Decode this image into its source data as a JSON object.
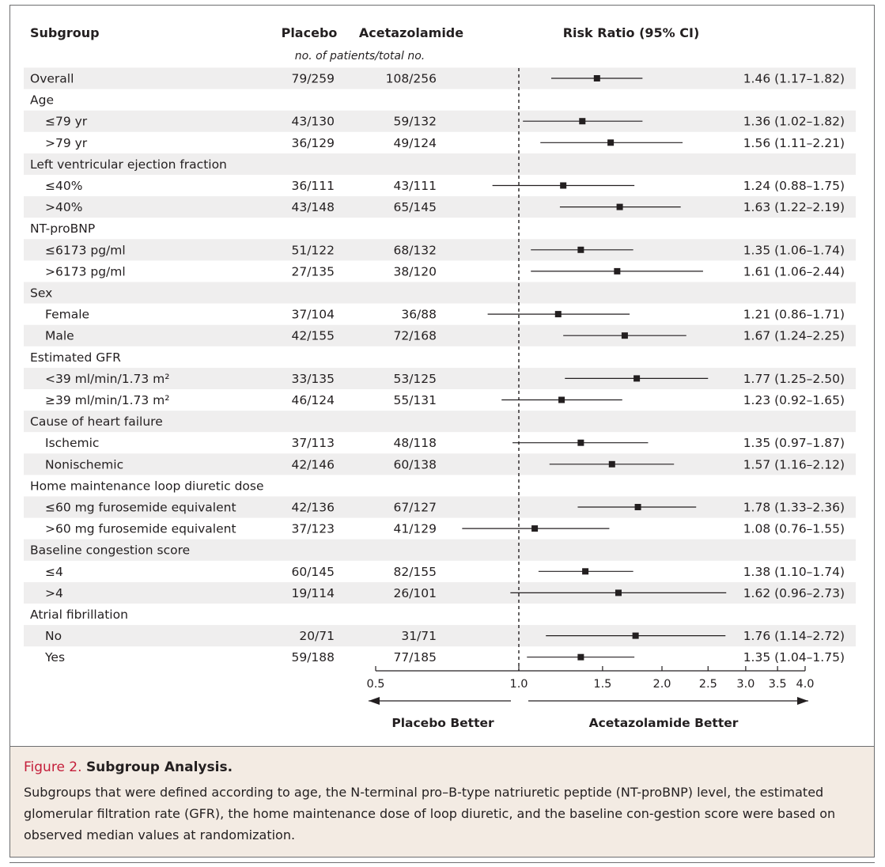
{
  "headers": {
    "subgroup": "Subgroup",
    "placebo": "Placebo",
    "acetazolamide": "Acetazolamide",
    "risk_ratio": "Risk Ratio (95% CI)",
    "patients_note": "no. of patients/total no."
  },
  "directions": {
    "left": "Placebo Better",
    "right": "Acetazolamide Better"
  },
  "caption": {
    "label": "Figure 2.",
    "heading": "Subgroup Analysis.",
    "text": "Subgroups that were defined according to age, the N-terminal pro–B-type natriuretic peptide (NT-proBNP) level, the estimated glomerular filtration rate (GFR), the home maintenance dose of loop diuretic, and the baseline con-gestion score were based on observed median values at randomization."
  },
  "colors": {
    "shade": "#efeeee",
    "accent": "#c41e3a",
    "caption_bg": "#f3ebe3",
    "text": "#231f20"
  },
  "chart_data": {
    "type": "forest",
    "scale": "log",
    "xlim": [
      0.5,
      4.0
    ],
    "reference": 1.0,
    "ticks": [
      0.5,
      1.0,
      1.5,
      2.0,
      2.5,
      3.0,
      3.5,
      4.0
    ],
    "tick_labels": [
      "0.5",
      "1.0",
      "1.5",
      "2.0",
      "2.5",
      "3.0",
      "3.5",
      "4.0"
    ],
    "rows": [
      {
        "label": "Overall",
        "placebo": "79/259",
        "acetazolamide": "108/256",
        "rr": 1.46,
        "lo": 1.17,
        "hi": 1.82,
        "ci_text": "1.46 (1.17–1.82)",
        "indent": false,
        "shaded": true
      },
      {
        "label": "Age",
        "indent": false,
        "shaded": false
      },
      {
        "label": "≤79 yr",
        "placebo": "43/130",
        "acetazolamide": "59/132",
        "rr": 1.36,
        "lo": 1.02,
        "hi": 1.82,
        "ci_text": "1.36 (1.02–1.82)",
        "indent": true,
        "shaded": true
      },
      {
        "label": ">79 yr",
        "placebo": "36/129",
        "acetazolamide": "49/124",
        "rr": 1.56,
        "lo": 1.11,
        "hi": 2.21,
        "ci_text": "1.56 (1.11–2.21)",
        "indent": true,
        "shaded": false
      },
      {
        "label": "Left ventricular ejection fraction",
        "indent": false,
        "shaded": true
      },
      {
        "label": "≤40%",
        "placebo": "36/111",
        "acetazolamide": "43/111",
        "rr": 1.24,
        "lo": 0.88,
        "hi": 1.75,
        "ci_text": "1.24 (0.88–1.75)",
        "indent": true,
        "shaded": false
      },
      {
        "label": ">40%",
        "placebo": "43/148",
        "acetazolamide": "65/145",
        "rr": 1.63,
        "lo": 1.22,
        "hi": 2.19,
        "ci_text": "1.63 (1.22–2.19)",
        "indent": true,
        "shaded": true
      },
      {
        "label": "NT-proBNP",
        "indent": false,
        "shaded": false
      },
      {
        "label": "≤6173 pg/ml",
        "placebo": "51/122",
        "acetazolamide": "68/132",
        "rr": 1.35,
        "lo": 1.06,
        "hi": 1.74,
        "ci_text": "1.35 (1.06–1.74)",
        "indent": true,
        "shaded": true
      },
      {
        "label": ">6173 pg/ml",
        "placebo": "27/135",
        "acetazolamide": "38/120",
        "rr": 1.61,
        "lo": 1.06,
        "hi": 2.44,
        "ci_text": "1.61 (1.06–2.44)",
        "indent": true,
        "shaded": false
      },
      {
        "label": "Sex",
        "indent": false,
        "shaded": true
      },
      {
        "label": "Female",
        "placebo": "37/104",
        "acetazolamide": "36/88",
        "rr": 1.21,
        "lo": 0.86,
        "hi": 1.71,
        "ci_text": "1.21 (0.86–1.71)",
        "indent": true,
        "shaded": false
      },
      {
        "label": "Male",
        "placebo": "42/155",
        "acetazolamide": "72/168",
        "rr": 1.67,
        "lo": 1.24,
        "hi": 2.25,
        "ci_text": "1.67 (1.24–2.25)",
        "indent": true,
        "shaded": true
      },
      {
        "label": "Estimated GFR",
        "indent": false,
        "shaded": false
      },
      {
        "label": "<39 ml/min/1.73 m²",
        "placebo": "33/135",
        "acetazolamide": "53/125",
        "rr": 1.77,
        "lo": 1.25,
        "hi": 2.5,
        "ci_text": "1.77 (1.25–2.50)",
        "indent": true,
        "shaded": true
      },
      {
        "label": "≥39 ml/min/1.73 m²",
        "placebo": "46/124",
        "acetazolamide": "55/131",
        "rr": 1.23,
        "lo": 0.92,
        "hi": 1.65,
        "ci_text": "1.23 (0.92–1.65)",
        "indent": true,
        "shaded": false
      },
      {
        "label": "Cause of heart failure",
        "indent": false,
        "shaded": true
      },
      {
        "label": "Ischemic",
        "placebo": "37/113",
        "acetazolamide": "48/118",
        "rr": 1.35,
        "lo": 0.97,
        "hi": 1.87,
        "ci_text": "1.35 (0.97–1.87)",
        "indent": true,
        "shaded": false
      },
      {
        "label": "Nonischemic",
        "placebo": "42/146",
        "acetazolamide": "60/138",
        "rr": 1.57,
        "lo": 1.16,
        "hi": 2.12,
        "ci_text": "1.57 (1.16–2.12)",
        "indent": true,
        "shaded": true
      },
      {
        "label": "Home maintenance loop diuretic dose",
        "indent": false,
        "shaded": false
      },
      {
        "label": "≤60 mg furosemide equivalent",
        "placebo": "42/136",
        "acetazolamide": "67/127",
        "rr": 1.78,
        "lo": 1.33,
        "hi": 2.36,
        "ci_text": "1.78 (1.33–2.36)",
        "indent": true,
        "shaded": true
      },
      {
        "label": ">60 mg furosemide equivalent",
        "placebo": "37/123",
        "acetazolamide": "41/129",
        "rr": 1.08,
        "lo": 0.76,
        "hi": 1.55,
        "ci_text": "1.08 (0.76–1.55)",
        "indent": true,
        "shaded": false
      },
      {
        "label": "Baseline congestion score",
        "indent": false,
        "shaded": true
      },
      {
        "label": "≤4",
        "placebo": "60/145",
        "acetazolamide": "82/155",
        "rr": 1.38,
        "lo": 1.1,
        "hi": 1.74,
        "ci_text": "1.38 (1.10–1.74)",
        "indent": true,
        "shaded": false
      },
      {
        "label": ">4",
        "placebo": "19/114",
        "acetazolamide": "26/101",
        "rr": 1.62,
        "lo": 0.96,
        "hi": 2.73,
        "ci_text": "1.62 (0.96–2.73)",
        "indent": true,
        "shaded": true
      },
      {
        "label": "Atrial fibrillation",
        "indent": false,
        "shaded": false
      },
      {
        "label": "No",
        "placebo": "20/71",
        "acetazolamide": "31/71",
        "rr": 1.76,
        "lo": 1.14,
        "hi": 2.72,
        "ci_text": "1.76 (1.14–2.72)",
        "indent": true,
        "shaded": true
      },
      {
        "label": "Yes",
        "placebo": "59/188",
        "acetazolamide": "77/185",
        "rr": 1.35,
        "lo": 1.04,
        "hi": 1.75,
        "ci_text": "1.35 (1.04–1.75)",
        "indent": true,
        "shaded": false
      }
    ]
  }
}
